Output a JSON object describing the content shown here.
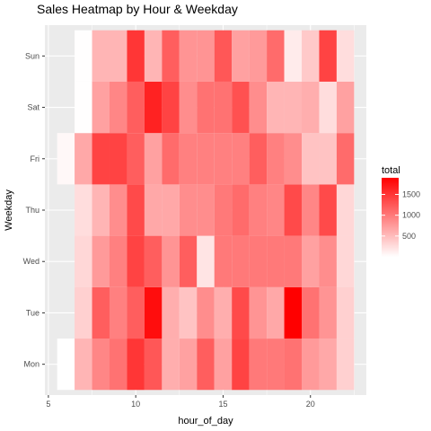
{
  "chart_data": {
    "type": "heatmap",
    "title": "Sales Heatmap by Hour & Weekday",
    "xlabel": "hour_of_day",
    "ylabel": "Weekday",
    "xlim": [
      4.8,
      23.2
    ],
    "x_ticks": [
      5,
      10,
      15,
      20
    ],
    "y_categories": [
      "Mon",
      "Tue",
      "Wed",
      "Thu",
      "Fri",
      "Sat",
      "Sun"
    ],
    "hours": [
      6,
      7,
      8,
      9,
      10,
      11,
      12,
      13,
      14,
      15,
      16,
      17,
      18,
      19,
      20,
      21,
      22
    ],
    "values": {
      "Sun": [
        null,
        10,
        550,
        550,
        1500,
        550,
        1200,
        800,
        800,
        1250,
        700,
        750,
        1100,
        150,
        400,
        1400,
        250
      ],
      "Sat": [
        null,
        10,
        700,
        900,
        1200,
        1650,
        1400,
        850,
        1050,
        1050,
        1300,
        850,
        550,
        550,
        600,
        250,
        700
      ],
      "Fri": [
        50,
        650,
        1400,
        1400,
        1200,
        700,
        1100,
        950,
        950,
        950,
        950,
        1200,
        950,
        850,
        450,
        450,
        1100
      ],
      "Thu": [
        null,
        250,
        550,
        850,
        1350,
        650,
        650,
        850,
        850,
        1000,
        1100,
        950,
        900,
        1350,
        900,
        1350,
        300
      ],
      "Wed": [
        null,
        300,
        750,
        950,
        1400,
        1200,
        800,
        1200,
        200,
        1000,
        1000,
        1000,
        1000,
        1000,
        700,
        850,
        300
      ],
      "Tue": [
        null,
        350,
        1200,
        950,
        1200,
        1800,
        600,
        450,
        850,
        600,
        1350,
        800,
        650,
        1900,
        1050,
        800,
        350
      ],
      "Mon": [
        0,
        550,
        900,
        1050,
        1500,
        1250,
        600,
        700,
        1200,
        700,
        1400,
        1000,
        1000,
        1050,
        750,
        650,
        350
      ]
    },
    "color_scale": {
      "name": "total",
      "low": "#ffffff",
      "high": "#ff0000",
      "min": 0,
      "max": 1900,
      "breaks": [
        500,
        1000,
        1500
      ],
      "break_labels": [
        "500",
        "1000",
        "1500"
      ]
    },
    "panel_background": "#ebebeb",
    "grid": true,
    "legend_position": "right"
  }
}
